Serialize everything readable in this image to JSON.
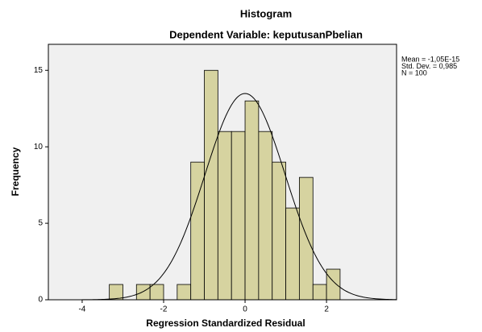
{
  "chart_data": {
    "type": "histogram",
    "title": "Histogram",
    "subtitle": "Dependent Variable: keputusanPbelian",
    "x_label": "Regression Standardized Residual",
    "y_label": "Frequency",
    "bins": [
      -3.333,
      -3,
      -2.667,
      -2.333,
      -2,
      -1.667,
      -1.333,
      -1,
      -0.667,
      -0.333,
      0,
      0.333,
      0.667,
      1,
      1.333,
      1.667,
      2,
      2.333
    ],
    "values": [
      1,
      0,
      1,
      1,
      0,
      1,
      9,
      15,
      11,
      11,
      13,
      11,
      9,
      6,
      8,
      1,
      2
    ],
    "color": "#d6d3a0",
    "xlim": [
      -4.83,
      3.72
    ],
    "xticks": [
      -4,
      -2,
      0,
      2
    ],
    "ylim": [
      0,
      16.7
    ],
    "yticks": [
      0,
      5,
      10,
      15
    ],
    "normal_curve": true,
    "stats": [
      {
        "value": -1.05e-15,
        "label": "Mean = -1,05E-15"
      },
      {
        "value": 0.985,
        "label": "Std. Dev. = 0,985"
      },
      {
        "value": 100,
        "label": "N = 100"
      }
    ]
  }
}
